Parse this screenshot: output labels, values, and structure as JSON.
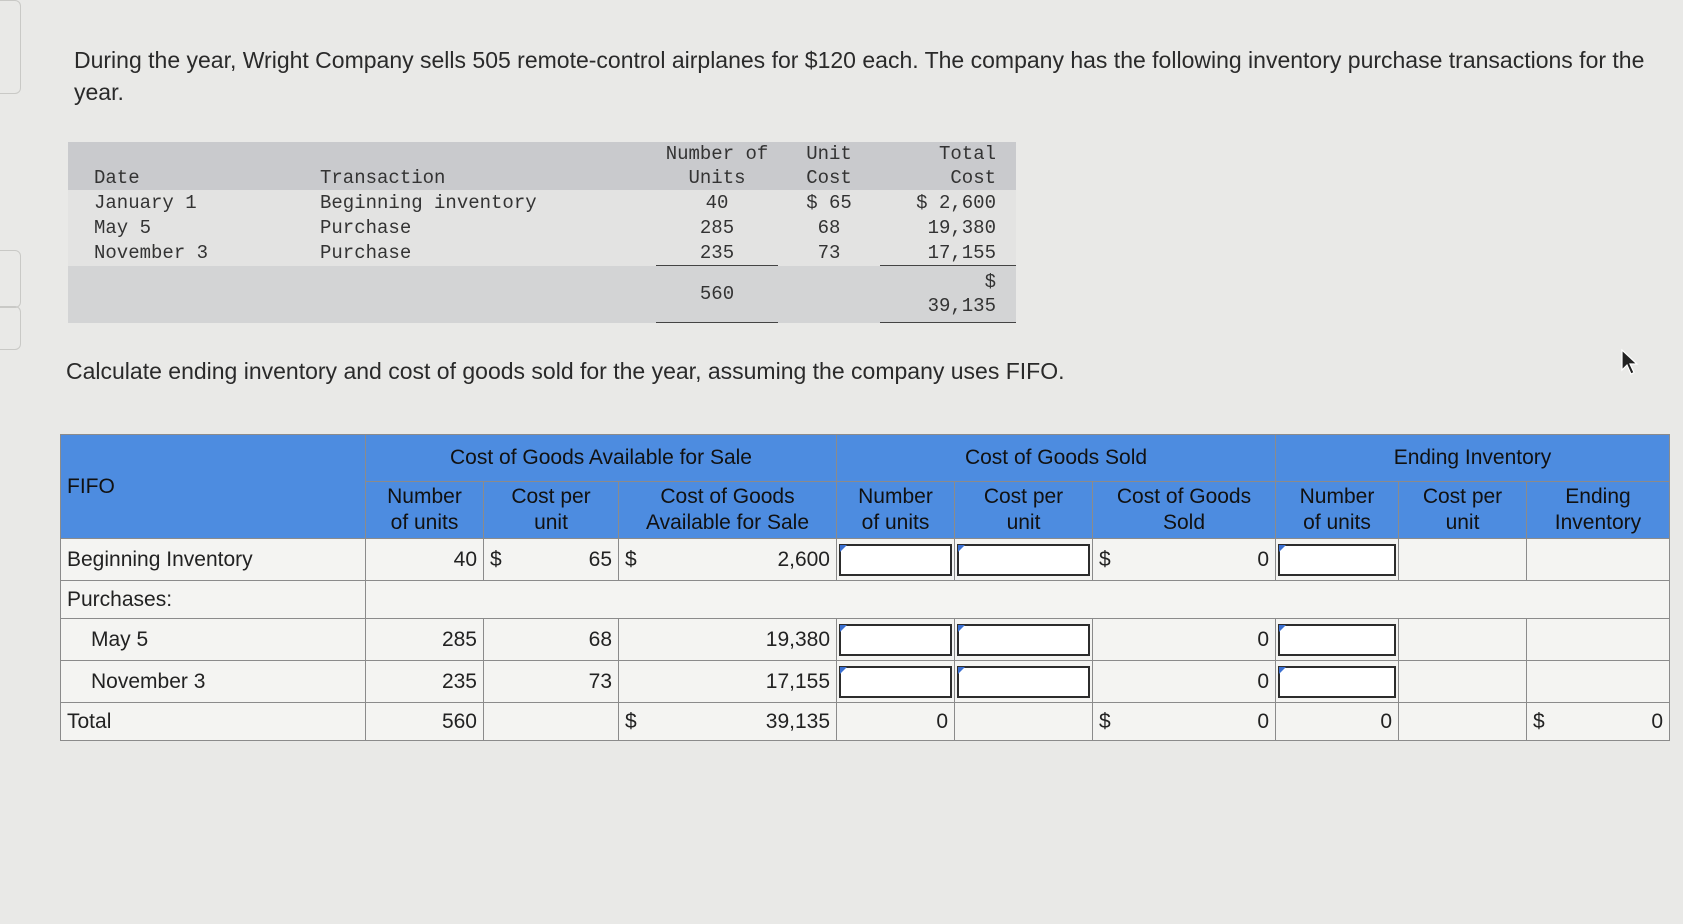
{
  "intro": "During the year, Wright Company sells 505 remote-control airplanes for $120 each. The company has the following inventory purchase transactions for the year.",
  "purchase_table": {
    "headers": {
      "date": "Date",
      "transaction": "Transaction",
      "units_line1": "Number of",
      "units_line2": "Units",
      "unit_cost_line1": "Unit",
      "unit_cost_line2": "Cost",
      "total_cost_line1": "Total",
      "total_cost_line2": "Cost"
    },
    "rows": [
      {
        "date": "January 1",
        "transaction": "Beginning inventory",
        "units": "40",
        "unit_cost": "$ 65",
        "total_cost": "$ 2,600"
      },
      {
        "date": "May 5",
        "transaction": "Purchase",
        "units": "285",
        "unit_cost": "68",
        "total_cost": "19,380"
      },
      {
        "date": "November 3",
        "transaction": "Purchase",
        "units": "235",
        "unit_cost": "73",
        "total_cost": "17,155"
      }
    ],
    "totals": {
      "units": "560",
      "total_cost_symbol": "$",
      "total_cost": "39,135"
    }
  },
  "prompt": "Calculate ending inventory and cost of goods sold for the year, assuming the company uses FIFO.",
  "worksheet": {
    "corner": "FIFO",
    "groups": {
      "available": "Cost of Goods Available for Sale",
      "sold": "Cost of Goods Sold",
      "ending": "Ending Inventory"
    },
    "subheaders": {
      "a_units": [
        "Number",
        "of units"
      ],
      "a_cpu": [
        "Cost per",
        "unit"
      ],
      "a_cgas": [
        "Cost of Goods",
        "Available for Sale"
      ],
      "s_units": [
        "Number",
        "of units"
      ],
      "s_cpu": [
        "Cost per",
        "unit"
      ],
      "s_cogs": [
        "Cost of Goods",
        "Sold"
      ],
      "e_units": [
        "Number",
        "of units"
      ],
      "e_cpu": [
        "Cost per",
        "unit"
      ],
      "e_inv": [
        "Ending",
        "Inventory"
      ]
    },
    "labels": {
      "beginning": "Beginning Inventory",
      "purchases": "Purchases:",
      "may": "May 5",
      "nov": "November 3",
      "total": "Total"
    },
    "beginning": {
      "units": "40",
      "cpu_symbol": "$",
      "cpu": "65",
      "cgas_symbol": "$",
      "cgas": "2,600",
      "cogs_symbol": "$",
      "cogs": "0"
    },
    "may": {
      "units": "285",
      "cpu": "68",
      "cgas": "19,380",
      "cogs": "0"
    },
    "nov": {
      "units": "235",
      "cpu": "73",
      "cgas": "17,155",
      "cogs": "0"
    },
    "total": {
      "units": "560",
      "cgas_symbol": "$",
      "cgas": "39,135",
      "sold_units": "0",
      "cogs_symbol": "$",
      "cogs": "0",
      "end_units": "0",
      "ei_symbol": "$",
      "ei": "0"
    }
  }
}
